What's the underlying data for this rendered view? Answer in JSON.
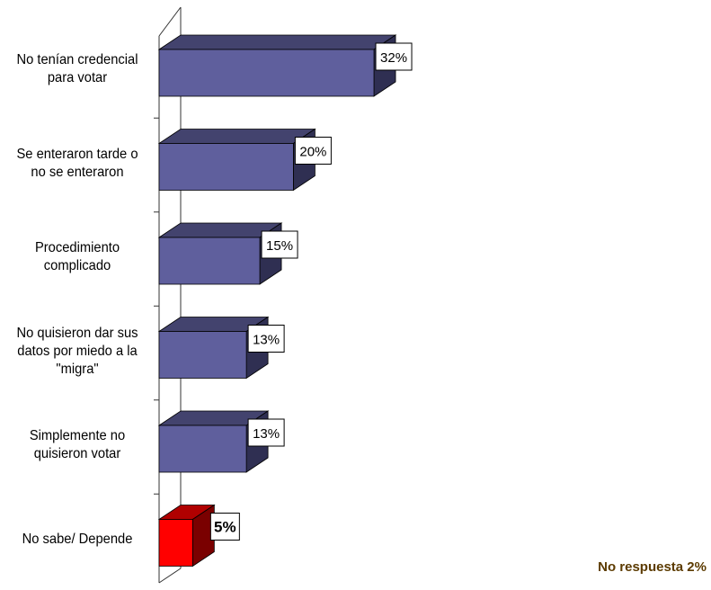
{
  "chart_data": {
    "type": "bar",
    "orientation": "horizontal",
    "three_d": true,
    "categories": [
      [
        "No tenían credencial",
        "para votar"
      ],
      [
        "Se enteraron tarde o",
        "no se enteraron"
      ],
      [
        "Procedimiento",
        "complicado"
      ],
      [
        "No quisieron dar sus",
        "datos por miedo a la",
        "\"migra\""
      ],
      [
        "Simplemente no",
        "quisieron votar"
      ],
      [
        "No sabe/ Depende"
      ]
    ],
    "values": [
      32,
      20,
      15,
      13,
      13,
      5
    ],
    "value_labels": [
      "32%",
      "20%",
      "15%",
      "13%",
      "13%",
      "5%"
    ],
    "highlight_index": 5,
    "title": "",
    "xlabel": "",
    "ylabel": "",
    "grid": false,
    "legend": "none",
    "colors": {
      "bar_front": "#5f5f9d",
      "bar_top": "#43436e",
      "bar_side": "#2f2f52",
      "highlight_front": "#ff0000",
      "highlight_top": "#b00000",
      "highlight_side": "#7a0000",
      "axis": "#333333",
      "note": "#5c3b00"
    }
  },
  "note": "No respuesta 2%"
}
